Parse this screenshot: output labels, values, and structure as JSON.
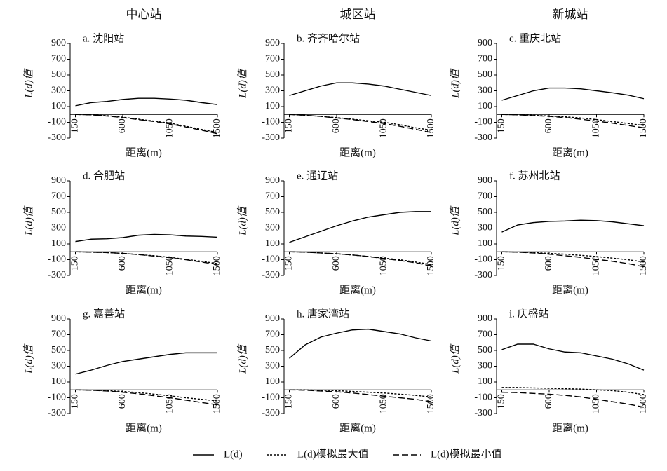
{
  "column_titles": [
    "中心站",
    "城区站",
    "新城站"
  ],
  "chart_data": [
    {
      "type": "line",
      "title": "a. 沈阳站",
      "xlabel": "距离(m)",
      "ylabel": "L(d)值",
      "x": [
        150,
        300,
        450,
        600,
        750,
        900,
        1050,
        1200,
        1350,
        1500
      ],
      "xlim": [
        100,
        1500
      ],
      "xticks": [
        150,
        600,
        1050,
        1500
      ],
      "ylim": [
        -300,
        900
      ],
      "yticks": [
        900,
        700,
        500,
        300,
        100,
        -100,
        -300
      ],
      "series": [
        {
          "name": "L(d)",
          "color": "#000000",
          "dash": "solid",
          "values": [
            110,
            150,
            165,
            190,
            205,
            205,
            195,
            180,
            150,
            125
          ]
        },
        {
          "name": "L(d)模拟最大值",
          "color": "#000000",
          "dash": "short",
          "values": [
            0,
            -5,
            -15,
            -35,
            -60,
            -85,
            -110,
            -150,
            -190,
            -230
          ]
        },
        {
          "name": "L(d)模拟最小值",
          "color": "#000000",
          "dash": "long",
          "values": [
            0,
            -5,
            -20,
            -40,
            -65,
            -90,
            -120,
            -160,
            -200,
            -245
          ]
        }
      ]
    },
    {
      "type": "line",
      "title": "b. 齐齐哈尔站",
      "xlabel": "距离(m)",
      "ylabel": "L(d)值",
      "x": [
        150,
        300,
        450,
        600,
        750,
        900,
        1050,
        1200,
        1350,
        1500
      ],
      "xlim": [
        100,
        1500
      ],
      "xticks": [
        150,
        600,
        1050,
        1500
      ],
      "ylim": [
        -300,
        900
      ],
      "yticks": [
        900,
        700,
        500,
        300,
        100,
        -100,
        -300
      ],
      "series": [
        {
          "name": "L(d)",
          "color": "#000000",
          "dash": "solid",
          "values": [
            240,
            300,
            360,
            400,
            400,
            385,
            360,
            320,
            280,
            240
          ]
        },
        {
          "name": "L(d)模拟最大值",
          "color": "#000000",
          "dash": "short",
          "values": [
            0,
            -10,
            -25,
            -40,
            -60,
            -80,
            -100,
            -130,
            -170,
            -200
          ]
        },
        {
          "name": "L(d)模拟最小值",
          "color": "#000000",
          "dash": "long",
          "values": [
            0,
            -10,
            -25,
            -45,
            -65,
            -90,
            -115,
            -150,
            -190,
            -230
          ]
        }
      ]
    },
    {
      "type": "line",
      "title": "c. 重庆北站",
      "xlabel": "距离(m)",
      "ylabel": "L(d)值",
      "x": [
        150,
        300,
        450,
        600,
        750,
        900,
        1050,
        1200,
        1350,
        1500
      ],
      "xlim": [
        100,
        1500
      ],
      "xticks": [
        150,
        600,
        1050,
        1500
      ],
      "ylim": [
        -300,
        900
      ],
      "yticks": [
        900,
        700,
        500,
        300,
        100,
        -100,
        -300
      ],
      "series": [
        {
          "name": "L(d)",
          "color": "#000000",
          "dash": "solid",
          "values": [
            180,
            240,
            300,
            335,
            335,
            325,
            300,
            275,
            245,
            200
          ]
        },
        {
          "name": "L(d)模拟最大值",
          "color": "#000000",
          "dash": "short",
          "values": [
            0,
            -5,
            -10,
            -20,
            -30,
            -45,
            -65,
            -90,
            -115,
            -140
          ]
        },
        {
          "name": "L(d)模拟最小值",
          "color": "#000000",
          "dash": "long",
          "values": [
            0,
            -5,
            -15,
            -25,
            -40,
            -60,
            -85,
            -110,
            -140,
            -170
          ]
        }
      ]
    },
    {
      "type": "line",
      "title": "d. 合肥站",
      "xlabel": "距离(m)",
      "ylabel": "L(d)值",
      "x": [
        150,
        300,
        450,
        600,
        750,
        900,
        1050,
        1200,
        1350,
        1500
      ],
      "xlim": [
        100,
        1500
      ],
      "xticks": [
        150,
        600,
        1050,
        1500
      ],
      "ylim": [
        -300,
        900
      ],
      "yticks": [
        900,
        700,
        500,
        300,
        100,
        -100,
        -300
      ],
      "series": [
        {
          "name": "L(d)",
          "color": "#000000",
          "dash": "solid",
          "values": [
            130,
            160,
            165,
            180,
            210,
            220,
            215,
            200,
            195,
            185
          ]
        },
        {
          "name": "L(d)模拟最大值",
          "color": "#000000",
          "dash": "short",
          "values": [
            0,
            -5,
            -10,
            -20,
            -35,
            -50,
            -70,
            -95,
            -120,
            -150
          ]
        },
        {
          "name": "L(d)模拟最小值",
          "color": "#000000",
          "dash": "long",
          "values": [
            0,
            -5,
            -10,
            -20,
            -35,
            -55,
            -75,
            -100,
            -130,
            -160
          ]
        }
      ]
    },
    {
      "type": "line",
      "title": "e. 通辽站",
      "xlabel": "距离(m)",
      "ylabel": "L(d)值",
      "x": [
        150,
        300,
        450,
        600,
        750,
        900,
        1050,
        1200,
        1350,
        1500
      ],
      "xlim": [
        100,
        1500
      ],
      "xticks": [
        150,
        600,
        1050,
        1500
      ],
      "ylim": [
        -300,
        900
      ],
      "yticks": [
        900,
        700,
        500,
        300,
        100,
        -100,
        -300
      ],
      "series": [
        {
          "name": "L(d)",
          "color": "#000000",
          "dash": "solid",
          "values": [
            120,
            190,
            260,
            330,
            390,
            440,
            470,
            500,
            510,
            510
          ]
        },
        {
          "name": "L(d)模拟最大值",
          "color": "#000000",
          "dash": "short",
          "values": [
            0,
            -5,
            -15,
            -25,
            -40,
            -60,
            -80,
            -100,
            -130,
            -160
          ]
        },
        {
          "name": "L(d)模拟最小值",
          "color": "#000000",
          "dash": "long",
          "values": [
            0,
            -5,
            -15,
            -25,
            -40,
            -60,
            -85,
            -110,
            -140,
            -180
          ]
        }
      ]
    },
    {
      "type": "line",
      "title": "f. 苏州北站",
      "xlabel": "距离(m)",
      "ylabel": "L(d)值",
      "x": [
        150,
        300,
        450,
        600,
        750,
        900,
        1050,
        1200,
        1350,
        1500
      ],
      "xlim": [
        100,
        1500
      ],
      "xticks": [
        150,
        600,
        1050,
        1500
      ],
      "ylim": [
        -300,
        900
      ],
      "yticks": [
        900,
        700,
        500,
        300,
        100,
        -100,
        -300
      ],
      "series": [
        {
          "name": "L(d)",
          "color": "#000000",
          "dash": "solid",
          "values": [
            250,
            340,
            370,
            385,
            390,
            400,
            395,
            380,
            355,
            330
          ]
        },
        {
          "name": "L(d)模拟最大值",
          "color": "#000000",
          "dash": "short",
          "values": [
            0,
            -5,
            -10,
            -20,
            -30,
            -45,
            -60,
            -80,
            -100,
            -130
          ]
        },
        {
          "name": "L(d)模拟最小值",
          "color": "#000000",
          "dash": "long",
          "values": [
            0,
            -5,
            -15,
            -30,
            -50,
            -70,
            -95,
            -120,
            -150,
            -190
          ]
        }
      ]
    },
    {
      "type": "line",
      "title": "g. 嘉善站",
      "xlabel": "距离(m)",
      "ylabel": "L(d)值",
      "x": [
        150,
        300,
        450,
        600,
        750,
        900,
        1050,
        1200,
        1350,
        1500
      ],
      "xlim": [
        100,
        1500
      ],
      "xticks": [
        150,
        600,
        1050,
        1500
      ],
      "ylim": [
        -300,
        900
      ],
      "yticks": [
        900,
        700,
        500,
        300,
        100,
        -100,
        -300
      ],
      "series": [
        {
          "name": "L(d)",
          "color": "#000000",
          "dash": "solid",
          "values": [
            200,
            250,
            310,
            360,
            390,
            420,
            450,
            470,
            470,
            470
          ]
        },
        {
          "name": "L(d)模拟最大值",
          "color": "#000000",
          "dash": "short",
          "values": [
            0,
            -5,
            -10,
            -20,
            -35,
            -55,
            -75,
            -100,
            -120,
            -140
          ]
        },
        {
          "name": "L(d)模拟最小值",
          "color": "#000000",
          "dash": "long",
          "values": [
            0,
            -5,
            -15,
            -30,
            -50,
            -75,
            -100,
            -130,
            -160,
            -190
          ]
        }
      ]
    },
    {
      "type": "line",
      "title": "h. 唐家湾站",
      "xlabel": "距离(m)",
      "ylabel": "L(d)值",
      "x": [
        150,
        300,
        450,
        600,
        750,
        900,
        1050,
        1200,
        1350,
        1500
      ],
      "xlim": [
        100,
        1500
      ],
      "xticks": [
        150,
        600,
        1050,
        1500
      ],
      "ylim": [
        -300,
        900
      ],
      "yticks": [
        900,
        700,
        500,
        300,
        100,
        -100,
        -300
      ],
      "series": [
        {
          "name": "L(d)",
          "color": "#000000",
          "dash": "solid",
          "values": [
            400,
            570,
            670,
            720,
            760,
            770,
            740,
            710,
            660,
            620
          ]
        },
        {
          "name": "L(d)模拟最大值",
          "color": "#000000",
          "dash": "short",
          "values": [
            0,
            0,
            -5,
            -10,
            -20,
            -30,
            -40,
            -55,
            -70,
            -90
          ]
        },
        {
          "name": "L(d)模拟最小值",
          "color": "#000000",
          "dash": "long",
          "values": [
            0,
            -5,
            -15,
            -25,
            -40,
            -60,
            -80,
            -100,
            -120,
            -150
          ]
        }
      ]
    },
    {
      "type": "line",
      "title": "i. 庆盛站",
      "xlabel": "距离(m)",
      "ylabel": "L(d)值",
      "x": [
        150,
        300,
        450,
        600,
        750,
        900,
        1050,
        1200,
        1350,
        1500
      ],
      "xlim": [
        100,
        1500
      ],
      "xticks": [
        150,
        600,
        1050,
        1500
      ],
      "ylim": [
        -300,
        900
      ],
      "yticks": [
        900,
        700,
        500,
        300,
        100,
        -100,
        -300
      ],
      "series": [
        {
          "name": "L(d)",
          "color": "#000000",
          "dash": "solid",
          "values": [
            510,
            580,
            580,
            520,
            480,
            470,
            430,
            390,
            330,
            250
          ]
        },
        {
          "name": "L(d)模拟最大值",
          "color": "#000000",
          "dash": "short",
          "values": [
            30,
            30,
            25,
            20,
            15,
            10,
            0,
            -10,
            -30,
            -60
          ]
        },
        {
          "name": "L(d)模拟最小值",
          "color": "#000000",
          "dash": "long",
          "values": [
            -30,
            -35,
            -45,
            -55,
            -70,
            -90,
            -120,
            -150,
            -180,
            -220
          ]
        }
      ]
    }
  ]
}
